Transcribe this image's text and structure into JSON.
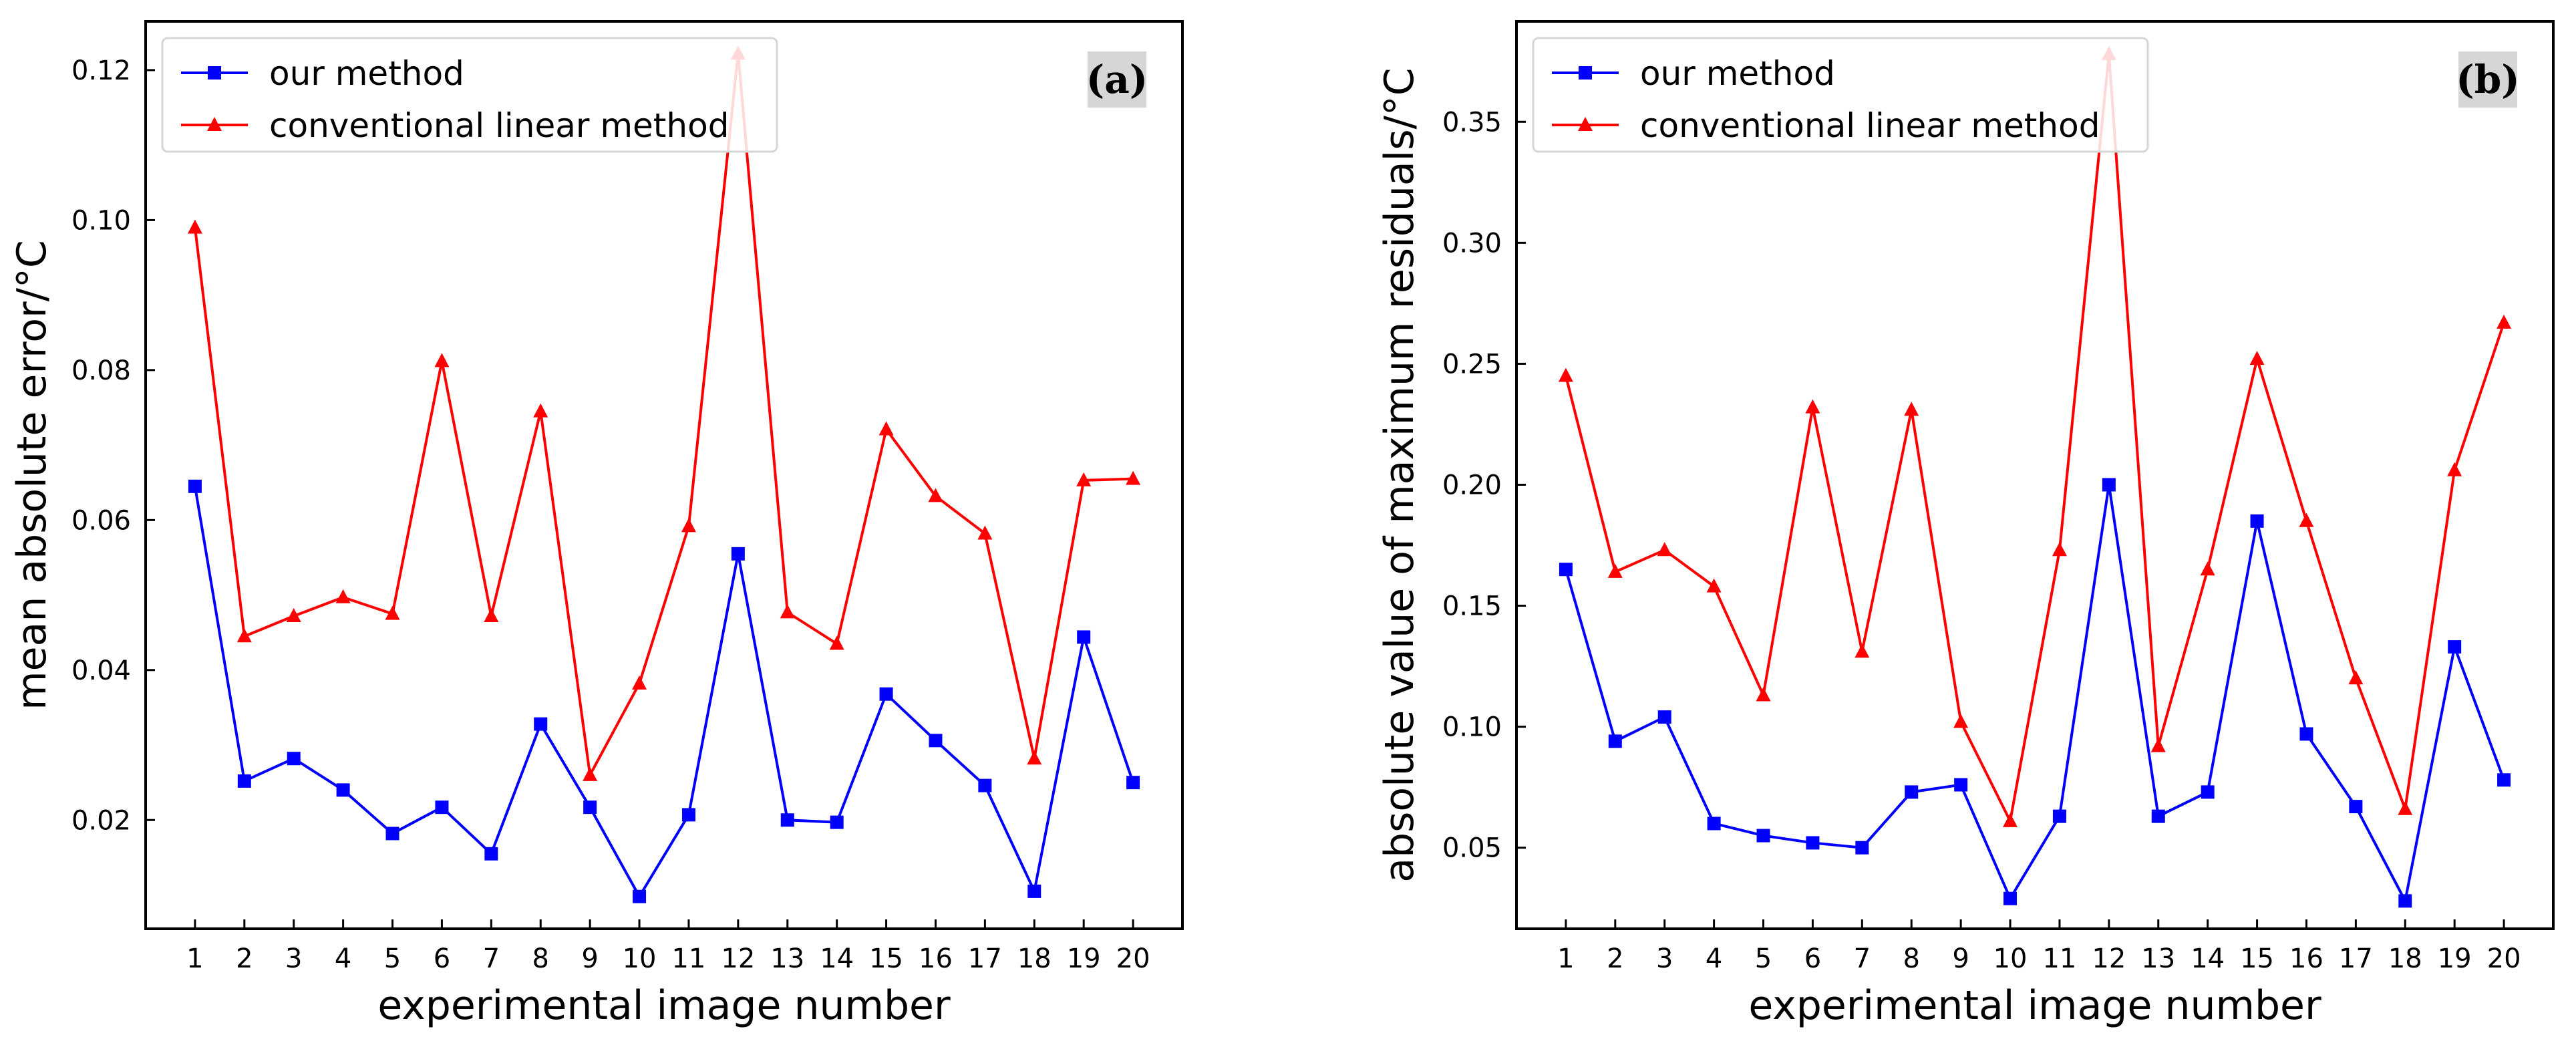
{
  "chart_data": [
    {
      "type": "line",
      "panel_label": "(a)",
      "xlabel": "experimental image number",
      "ylabel": "mean absolute error/°C",
      "x": [
        1,
        2,
        3,
        4,
        5,
        6,
        7,
        8,
        9,
        10,
        11,
        12,
        13,
        14,
        15,
        16,
        17,
        18,
        19,
        20
      ],
      "xlim": [
        0,
        21
      ],
      "ylim": [
        0.0055,
        0.1265
      ],
      "yticks": [
        0.02,
        0.04,
        0.06,
        0.08,
        0.1,
        0.12
      ],
      "ytick_labels": [
        "0.02",
        "0.04",
        "0.06",
        "0.08",
        "0.10",
        "0.12"
      ],
      "legend_position": "top-left",
      "series": [
        {
          "name": "our method",
          "color": "#0000ff",
          "marker": "square",
          "values": [
            0.0645,
            0.0252,
            0.0282,
            0.024,
            0.0182,
            0.0217,
            0.0155,
            0.0328,
            0.0217,
            0.0098,
            0.0207,
            0.0555,
            0.02,
            0.0197,
            0.0368,
            0.0306,
            0.0246,
            0.0105,
            0.0444,
            0.025
          ]
        },
        {
          "name": "conventional linear method",
          "color": "#ff0000",
          "marker": "triangle",
          "values": [
            0.099,
            0.0445,
            0.0472,
            0.0497,
            0.0475,
            0.0812,
            0.0472,
            0.0745,
            0.026,
            0.0382,
            0.0592,
            0.1222,
            0.0477,
            0.0435,
            0.0721,
            0.0632,
            0.0582,
            0.0282,
            0.0653,
            0.0655
          ]
        }
      ]
    },
    {
      "type": "line",
      "panel_label": "(b)",
      "xlabel": "experimental image number",
      "ylabel": "absolute value of maximum residuals/°C",
      "x": [
        1,
        2,
        3,
        4,
        5,
        6,
        7,
        8,
        9,
        10,
        11,
        12,
        13,
        14,
        15,
        16,
        17,
        18,
        19,
        20
      ],
      "xlim": [
        0,
        21
      ],
      "ylim": [
        0.0165,
        0.3915
      ],
      "yticks": [
        0.05,
        0.1,
        0.15,
        0.2,
        0.25,
        0.3,
        0.35
      ],
      "ytick_labels": [
        "0.05",
        "0.10",
        "0.15",
        "0.20",
        "0.25",
        "0.30",
        "0.35"
      ],
      "legend_position": "top-left",
      "series": [
        {
          "name": "our method",
          "color": "#0000ff",
          "marker": "square",
          "values": [
            0.165,
            0.094,
            0.104,
            0.06,
            0.055,
            0.052,
            0.05,
            0.073,
            0.076,
            0.029,
            0.063,
            0.2,
            0.063,
            0.073,
            0.185,
            0.097,
            0.067,
            0.028,
            0.133,
            0.078
          ]
        },
        {
          "name": "conventional linear method",
          "color": "#ff0000",
          "marker": "triangle",
          "values": [
            0.245,
            0.164,
            0.173,
            0.158,
            0.113,
            0.232,
            0.131,
            0.231,
            0.102,
            0.061,
            0.173,
            0.378,
            0.092,
            0.165,
            0.252,
            0.185,
            0.12,
            0.066,
            0.206,
            0.267
          ]
        }
      ]
    }
  ]
}
